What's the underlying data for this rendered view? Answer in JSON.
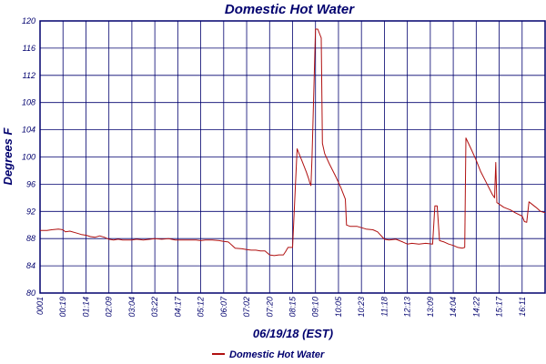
{
  "chart_data": {
    "type": "line",
    "title": "Domestic Hot Water",
    "xlabel": "06/19/18 (EST)",
    "ylabel": "Degrees F",
    "ylim": [
      80,
      120
    ],
    "yticks": [
      80,
      84,
      88,
      92,
      96,
      100,
      104,
      108,
      112,
      116,
      120
    ],
    "xlim": [
      0,
      22
    ],
    "categories": [
      "0001",
      "00:19",
      "01:14",
      "02:09",
      "03:04",
      "03:22",
      "04:17",
      "05:12",
      "06:07",
      "07:02",
      "07:20",
      "08:15",
      "09:10",
      "10:05",
      "10:23",
      "11:18",
      "12:13",
      "13:09",
      "14:04",
      "14:22",
      "15:17",
      "16:11"
    ],
    "grid": true,
    "legend_position": "bottom-center",
    "colors": {
      "line": "#b01010",
      "grid": "#00006e",
      "axis": "#00006e",
      "text": "#00006e"
    },
    "series": [
      {
        "name": "Domestic Hot Water",
        "x": [
          0,
          0.3,
          0.5,
          0.8,
          1.0,
          1.1,
          1.3,
          1.6,
          1.8,
          2.0,
          2.2,
          2.4,
          2.6,
          2.8,
          3.0,
          3.2,
          3.4,
          3.6,
          3.8,
          4.0,
          4.2,
          4.5,
          4.8,
          5.0,
          5.3,
          5.6,
          5.9,
          6.2,
          6.5,
          6.8,
          7.0,
          7.2,
          7.5,
          7.8,
          8.0,
          8.2,
          8.5,
          8.8,
          9.0,
          9.2,
          9.4,
          9.6,
          9.8,
          10.0,
          10.2,
          10.4,
          10.6,
          10.7,
          10.8,
          10.85,
          11.0,
          11.2,
          11.4,
          11.6,
          11.7,
          11.75,
          11.8,
          11.85,
          12.0,
          12.1,
          12.25,
          12.3,
          12.4,
          12.6,
          12.9,
          13.1,
          13.3,
          13.35,
          13.5,
          13.8,
          14.0,
          14.2,
          14.5,
          14.7,
          15.0,
          15.2,
          15.5,
          15.8,
          16.0,
          16.2,
          16.5,
          16.8,
          17.1,
          17.2,
          17.3,
          17.4,
          17.6,
          17.8,
          18.0,
          18.2,
          18.4,
          18.5,
          18.55,
          18.8,
          19.0,
          19.2,
          19.4,
          19.7,
          19.8,
          19.85,
          19.9,
          20.2,
          20.5,
          20.7,
          21.0,
          21.1,
          21.2,
          21.3,
          21.6,
          21.8,
          22.0
        ],
        "values": [
          89.2,
          89.2,
          89.3,
          89.4,
          89.3,
          89.0,
          89.1,
          88.8,
          88.6,
          88.5,
          88.3,
          88.2,
          88.4,
          88.2,
          87.9,
          87.8,
          87.9,
          87.8,
          87.8,
          87.8,
          87.9,
          87.8,
          87.9,
          88.0,
          87.9,
          88.0,
          87.8,
          87.8,
          87.8,
          87.8,
          87.7,
          87.8,
          87.8,
          87.7,
          87.6,
          87.5,
          86.6,
          86.5,
          86.4,
          86.3,
          86.3,
          86.2,
          86.2,
          85.6,
          85.5,
          85.6,
          85.6,
          86.1,
          86.7,
          86.7,
          86.7,
          101.2,
          99.5,
          97.8,
          96.8,
          96.2,
          95.8,
          100.0,
          118.8,
          118.8,
          117.5,
          102.0,
          100.5,
          99.0,
          97.0,
          95.5,
          93.8,
          90.0,
          89.8,
          89.8,
          89.6,
          89.4,
          89.3,
          89.0,
          87.9,
          87.8,
          87.9,
          87.5,
          87.2,
          87.3,
          87.2,
          87.3,
          87.2,
          92.8,
          92.8,
          87.7,
          87.5,
          87.2,
          87.0,
          86.7,
          86.6,
          86.7,
          102.8,
          101.0,
          99.5,
          97.8,
          96.5,
          94.5,
          94.0,
          99.2,
          93.3,
          92.6,
          92.2,
          91.8,
          91.3,
          90.5,
          90.4,
          93.4,
          92.6,
          92.0,
          91.8
        ]
      }
    ]
  }
}
